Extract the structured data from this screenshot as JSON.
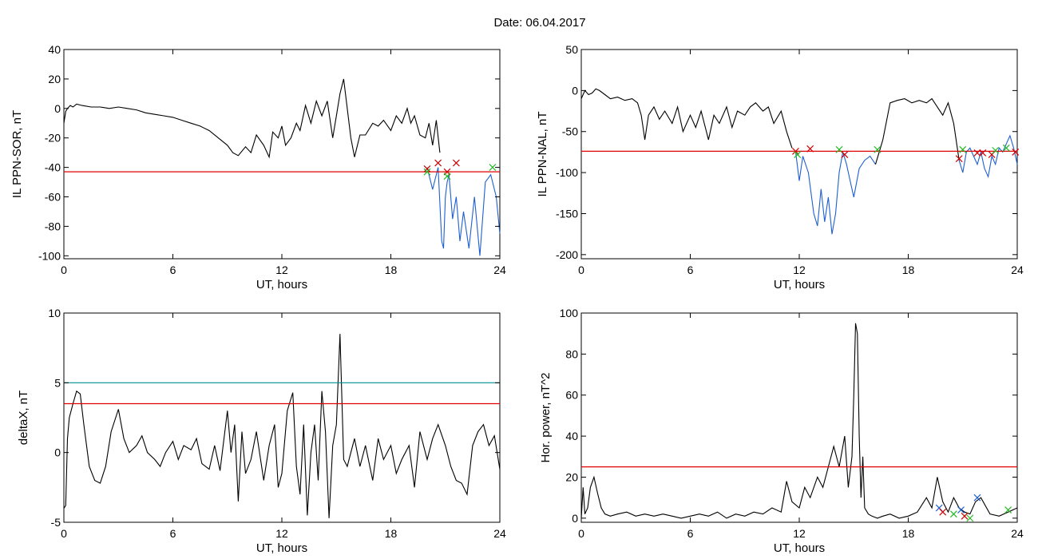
{
  "figure": {
    "title": "Date:  06.04.2017"
  },
  "chart_data": [
    {
      "id": "sor",
      "type": "line",
      "xlabel": "UT, hours",
      "ylabel": "IL PPN-SOR, nT",
      "xlim": [
        0,
        24
      ],
      "ylim": [
        -102,
        40
      ],
      "xticks": [
        0,
        6,
        12,
        18,
        24
      ],
      "yticks": [
        -100,
        -80,
        -60,
        -40,
        -20,
        0,
        20,
        40
      ],
      "series": [
        {
          "color": "#000000",
          "x": [
            0,
            0.1,
            0.2,
            0.35,
            0.5,
            0.7,
            1,
            1.5,
            2,
            2.5,
            3,
            3.5,
            4,
            4.5,
            5,
            5.5,
            6,
            6.5,
            7,
            7.5,
            8,
            8.5,
            9,
            9.3,
            9.6,
            10,
            10.3,
            10.6,
            11,
            11.3,
            11.5,
            11.8,
            12,
            12.2,
            12.5,
            12.8,
            13,
            13.3,
            13.6,
            13.9,
            14.2,
            14.5,
            14.8,
            15,
            15.2,
            15.4,
            15.6,
            15.8,
            16,
            16.3,
            16.6,
            17,
            17.3,
            17.6,
            18,
            18.3,
            18.6,
            18.9,
            19.1,
            19.3,
            19.6,
            19.9,
            20.1,
            20.3,
            20.5,
            20.7
          ],
          "y": [
            -10,
            -2,
            0,
            2,
            1,
            3,
            2,
            1,
            1,
            0,
            1,
            0,
            -1,
            -3,
            -4,
            -5,
            -6,
            -8,
            -10,
            -12,
            -15,
            -20,
            -25,
            -30,
            -32,
            -26,
            -30,
            -18,
            -25,
            -33,
            -16,
            -20,
            -12,
            -25,
            -20,
            -10,
            -15,
            2,
            -10,
            5,
            -5,
            5,
            -20,
            -5,
            10,
            20,
            0,
            -20,
            -33,
            -18,
            -18,
            -10,
            -12,
            -8,
            -15,
            -5,
            -10,
            0,
            -10,
            -5,
            -18,
            -20,
            -10,
            -25,
            -8,
            -30
          ]
        },
        {
          "color": "#1f5fd0",
          "x": [
            20,
            20.3,
            20.6,
            20.8,
            20.9,
            21.0,
            21.1,
            21.2,
            21.4,
            21.6,
            21.8,
            22.0,
            22.3,
            22.6,
            22.9,
            23.2,
            23.5,
            23.8,
            24
          ],
          "y": [
            -40,
            -55,
            -40,
            -90,
            -95,
            -60,
            -50,
            -45,
            -75,
            -60,
            -90,
            -70,
            -95,
            -60,
            -100,
            -50,
            -45,
            -60,
            -85
          ]
        }
      ],
      "hlines": [
        {
          "y": -43,
          "color": "#e00000"
        }
      ],
      "markers": [
        {
          "x": 20.0,
          "y": -41,
          "color": "#d00000"
        },
        {
          "x": 20.0,
          "y": -43,
          "color": "#22bb22"
        },
        {
          "x": 20.6,
          "y": -37,
          "color": "#d00000"
        },
        {
          "x": 21.1,
          "y": -43,
          "color": "#d00000"
        },
        {
          "x": 21.1,
          "y": -46,
          "color": "#22bb22"
        },
        {
          "x": 21.6,
          "y": -37,
          "color": "#d00000"
        },
        {
          "x": 23.6,
          "y": -40,
          "color": "#22bb22"
        }
      ]
    },
    {
      "id": "nal",
      "type": "line",
      "xlabel": "UT, hours",
      "ylabel": "IL PPN-NAL, nT",
      "xlim": [
        0,
        24
      ],
      "ylim": [
        -205,
        50
      ],
      "xticks": [
        0,
        6,
        12,
        18,
        24
      ],
      "yticks": [
        -200,
        -150,
        -100,
        -50,
        0,
        50
      ],
      "series": [
        {
          "color": "#000000",
          "x": [
            0,
            0.2,
            0.4,
            0.6,
            0.8,
            1,
            1.3,
            1.6,
            2,
            2.4,
            2.8,
            3.1,
            3.3,
            3.5,
            3.7,
            4,
            4.3,
            4.6,
            5,
            5.3,
            5.6,
            6,
            6.3,
            6.6,
            7,
            7.3,
            7.6,
            8,
            8.3,
            8.6,
            9,
            9.3,
            9.6,
            10,
            10.3,
            10.6,
            11,
            11.3,
            11.6
          ],
          "y": [
            -10,
            0,
            -5,
            -3,
            2,
            0,
            -5,
            -10,
            -8,
            -12,
            -10,
            -15,
            -30,
            -60,
            -30,
            -20,
            -35,
            -25,
            -40,
            -20,
            -50,
            -30,
            -45,
            -25,
            -60,
            -30,
            -40,
            -20,
            -45,
            -25,
            -30,
            -20,
            -15,
            -25,
            -20,
            -40,
            -25,
            -50,
            -70
          ]
        },
        {
          "color": "#1f5fd0",
          "x": [
            11.8,
            12,
            12.2,
            12.5,
            12.8,
            13,
            13.2,
            13.4,
            13.6,
            13.8,
            14,
            14.2,
            14.4,
            14.6,
            14.8,
            15,
            15.3,
            15.6,
            15.9,
            16.2
          ],
          "y": [
            -75,
            -110,
            -80,
            -100,
            -150,
            -165,
            -120,
            -160,
            -130,
            -175,
            -150,
            -100,
            -75,
            -90,
            -110,
            -130,
            -95,
            -85,
            -80,
            -90
          ]
        },
        {
          "color": "#000000",
          "x": [
            16.2,
            16.6,
            17,
            17.4,
            17.8,
            18.2,
            18.6,
            19,
            19.3,
            19.6,
            19.9,
            20.2,
            20.5,
            20.8
          ],
          "y": [
            -90,
            -60,
            -15,
            -12,
            -10,
            -15,
            -12,
            -15,
            -10,
            -20,
            -30,
            -15,
            -40,
            -85
          ]
        },
        {
          "color": "#1f5fd0",
          "x": [
            20.8,
            21,
            21.2,
            21.4,
            21.6,
            21.8,
            22,
            22.2,
            22.4,
            22.6,
            22.8,
            23,
            23.2,
            23.4,
            23.6,
            23.8,
            24
          ],
          "y": [
            -85,
            -100,
            -75,
            -70,
            -80,
            -90,
            -75,
            -95,
            -105,
            -80,
            -90,
            -70,
            -75,
            -65,
            -55,
            -70,
            -90
          ]
        }
      ],
      "hlines": [
        {
          "y": -74,
          "color": "#e00000"
        }
      ],
      "markers": [
        {
          "x": 11.8,
          "y": -74,
          "color": "#d00000"
        },
        {
          "x": 11.9,
          "y": -78,
          "color": "#22bb22"
        },
        {
          "x": 12.6,
          "y": -71,
          "color": "#d00000"
        },
        {
          "x": 14.2,
          "y": -72,
          "color": "#22bb22"
        },
        {
          "x": 14.5,
          "y": -78,
          "color": "#d00000"
        },
        {
          "x": 16.3,
          "y": -72,
          "color": "#22bb22"
        },
        {
          "x": 20.8,
          "y": -83,
          "color": "#d00000"
        },
        {
          "x": 21.0,
          "y": -72,
          "color": "#22bb22"
        },
        {
          "x": 21.8,
          "y": -76,
          "color": "#d00000"
        },
        {
          "x": 22.1,
          "y": -76,
          "color": "#d00000"
        },
        {
          "x": 22.6,
          "y": -78,
          "color": "#d00000"
        },
        {
          "x": 22.8,
          "y": -73,
          "color": "#22bb22"
        },
        {
          "x": 23.4,
          "y": -70,
          "color": "#22bb22"
        },
        {
          "x": 23.9,
          "y": -75,
          "color": "#d00000"
        }
      ]
    },
    {
      "id": "deltax",
      "type": "line",
      "xlabel": "UT, hours",
      "ylabel": "deltaX, nT",
      "xlim": [
        0,
        24
      ],
      "ylim": [
        -5,
        10
      ],
      "xticks": [
        0,
        6,
        12,
        18,
        24
      ],
      "yticks": [
        -5,
        0,
        5,
        10
      ],
      "series": [
        {
          "color": "#000000",
          "x": [
            0,
            0.1,
            0.2,
            0.3,
            0.5,
            0.7,
            0.9,
            1.1,
            1.4,
            1.7,
            2,
            2.3,
            2.6,
            3,
            3.3,
            3.6,
            4,
            4.3,
            4.6,
            5,
            5.3,
            5.6,
            6,
            6.3,
            6.6,
            7,
            7.3,
            7.6,
            8,
            8.3,
            8.6,
            9,
            9.2,
            9.4,
            9.6,
            9.8,
            10,
            10.3,
            10.6,
            11,
            11.3,
            11.6,
            11.8,
            12,
            12.3,
            12.6,
            12.8,
            13,
            13.2,
            13.4,
            13.6,
            13.8,
            14,
            14.2,
            14.4,
            14.6,
            14.8,
            15,
            15.2,
            15.4,
            15.6,
            15.8,
            16,
            16.3,
            16.6,
            17,
            17.3,
            17.6,
            18,
            18.3,
            18.6,
            19,
            19.3,
            19.6,
            20,
            20.3,
            20.6,
            21,
            21.3,
            21.6,
            21.9,
            22.2,
            22.5,
            22.8,
            23.1,
            23.4,
            23.7,
            24
          ],
          "y": [
            -4,
            -3.8,
            1,
            2.5,
            3.5,
            4.4,
            4.2,
            2,
            -1,
            -2,
            -2.2,
            -1,
            1.5,
            3.1,
            1,
            0,
            0.5,
            1.2,
            0,
            -0.5,
            -1,
            0,
            0.8,
            -0.5,
            0.5,
            0.2,
            1,
            -0.8,
            -1.2,
            0.5,
            -1.3,
            3,
            0,
            2,
            -3.5,
            1.5,
            -1.5,
            -0.5,
            1.5,
            -2,
            0.5,
            2,
            -2.5,
            -1.5,
            3,
            4.3,
            -1,
            -3,
            2,
            -4.5,
            0,
            2,
            -2,
            4.4,
            1.5,
            -4.7,
            0.5,
            2,
            8.5,
            -0.5,
            -1,
            0,
            1,
            -1,
            0.5,
            -2,
            1,
            -0.5,
            0.5,
            -1.5,
            -0.5,
            0.5,
            -2.5,
            1.5,
            -0.5,
            1,
            2,
            0.5,
            -1,
            -2,
            -2.2,
            -3,
            0.5,
            1.5,
            2,
            0.5,
            1.2,
            -1.2
          ]
        }
      ],
      "hlines": [
        {
          "y": 5,
          "color": "#009090"
        },
        {
          "y": 3.5,
          "color": "#e00000"
        }
      ],
      "markers": []
    },
    {
      "id": "power",
      "type": "line",
      "xlabel": "UT, hours",
      "ylabel": "Hor. power, nT^2",
      "xlim": [
        0,
        24
      ],
      "ylim": [
        -2,
        100
      ],
      "xticks": [
        0,
        6,
        12,
        18,
        24
      ],
      "yticks": [
        0,
        20,
        40,
        60,
        80,
        100
      ],
      "series": [
        {
          "color": "#000000",
          "x": [
            0,
            0.1,
            0.2,
            0.35,
            0.5,
            0.7,
            0.9,
            1.1,
            1.3,
            1.6,
            2,
            2.5,
            3,
            3.5,
            4,
            4.5,
            5,
            5.5,
            6,
            6.5,
            7,
            7.5,
            8,
            8.5,
            9,
            9.5,
            10,
            10.5,
            11,
            11.3,
            11.6,
            12,
            12.3,
            12.6,
            13,
            13.3,
            13.6,
            13.9,
            14.2,
            14.5,
            14.7,
            14.9,
            15,
            15.1,
            15.2,
            15.3,
            15.4,
            15.5,
            15.6,
            15.8,
            16,
            16.3,
            16.6,
            17,
            17.5,
            18,
            18.5,
            19,
            19.3,
            19.6,
            19.9,
            20.2,
            20.5,
            20.8,
            21.1,
            21.4,
            21.7,
            22,
            22.5,
            23,
            23.5,
            24
          ],
          "y": [
            0,
            15,
            2,
            5,
            15,
            20,
            12,
            5,
            2,
            1,
            2,
            3,
            1,
            2,
            1,
            2,
            1,
            0,
            1,
            2,
            1,
            3,
            0,
            2,
            1,
            3,
            2,
            5,
            3,
            18,
            8,
            5,
            15,
            10,
            20,
            15,
            25,
            35,
            25,
            40,
            15,
            30,
            60,
            95,
            90,
            40,
            10,
            30,
            5,
            2,
            1,
            0,
            1,
            2,
            0,
            1,
            3,
            10,
            5,
            20,
            8,
            3,
            10,
            5,
            3,
            2,
            8,
            10,
            2,
            1,
            3,
            5
          ]
        }
      ],
      "hlines": [
        {
          "y": 25,
          "color": "#e00000"
        }
      ],
      "markers": [
        {
          "x": 19.7,
          "y": 5,
          "color": "#1f5fd0"
        },
        {
          "x": 19.9,
          "y": 3,
          "color": "#d00000"
        },
        {
          "x": 20.5,
          "y": 2,
          "color": "#22bb22"
        },
        {
          "x": 20.9,
          "y": 4,
          "color": "#1f5fd0"
        },
        {
          "x": 21.1,
          "y": 1,
          "color": "#d00000"
        },
        {
          "x": 21.4,
          "y": 0,
          "color": "#22bb22"
        },
        {
          "x": 21.8,
          "y": 10,
          "color": "#1f5fd0"
        },
        {
          "x": 23.5,
          "y": 4,
          "color": "#22bb22"
        }
      ]
    }
  ]
}
